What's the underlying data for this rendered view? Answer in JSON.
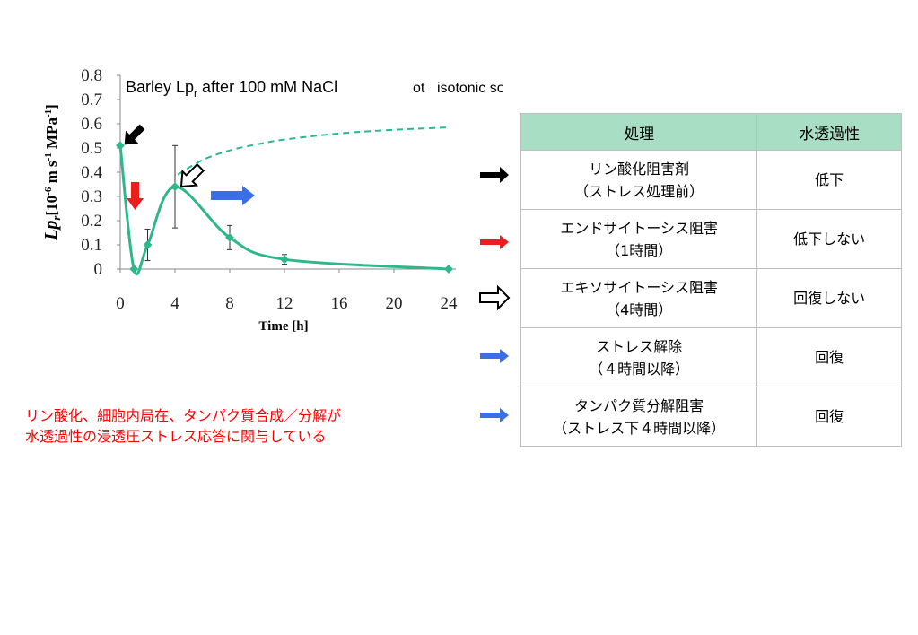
{
  "chart_data": {
    "type": "line",
    "title": "Barley Lp",
    "title_subscript": "r",
    "title_rest": " after 100 mM NaCl",
    "subtitle_prefix": "ot",
    "subtitle": "isotonic sorbitol/manitol",
    "xlabel": "Time [h]",
    "ylabel_main": "Lp",
    "ylabel_sub": "r",
    "ylabel_units": "[10",
    "ylabel_exp1": "-6",
    "ylabel_mid": " m s",
    "ylabel_exp2": "-1",
    "ylabel_mpa": " MPa",
    "ylabel_exp3": "-1",
    "ylabel_close": "]",
    "xlim": [
      0,
      24
    ],
    "ylim": [
      0,
      0.8
    ],
    "x_ticks": [
      "0",
      "4",
      "8",
      "12",
      "16",
      "20",
      "24"
    ],
    "y_ticks": [
      "0",
      "0.1",
      "0.2",
      "0.3",
      "0.4",
      "0.5",
      "0.6",
      "0.7",
      "0.8"
    ],
    "series": [
      {
        "x": [
          0,
          1,
          2,
          4,
          8,
          12,
          24
        ],
        "y": [
          0.51,
          0.0,
          0.1,
          0.34,
          0.13,
          0.04,
          0.0
        ],
        "err": [
          0.0,
          0.0,
          0.065,
          0.17,
          0.05,
          0.02,
          0.0
        ],
        "color": "#2eb88a"
      }
    ],
    "projection": {
      "x": [
        4.2,
        6,
        8,
        10,
        12,
        16,
        20,
        24
      ],
      "y": [
        0.39,
        0.45,
        0.49,
        0.515,
        0.535,
        0.56,
        0.575,
        0.585
      ],
      "style": "dashed",
      "color": "#2eb88a"
    },
    "grid": false
  },
  "table": {
    "headers": [
      "処理",
      "水透過性"
    ],
    "rows": [
      {
        "treatment": [
          "リン酸化阻害剤",
          "（ストレス処理前）"
        ],
        "effect": "低下",
        "arrow": "black-solid"
      },
      {
        "treatment": [
          "エンドサイトーシス阻害",
          "（1時間）"
        ],
        "effect": "低下しない",
        "arrow": "red"
      },
      {
        "treatment": [
          "エキソサイトーシス阻害",
          "（4時間）"
        ],
        "effect": "回復しない",
        "arrow": "black-outline"
      },
      {
        "treatment": [
          "ストレス解除",
          "（４時間以降）"
        ],
        "effect": "回復",
        "arrow": "blue"
      },
      {
        "treatment": [
          "タンパク質分解阻害",
          "（ストレス下４時間以降）"
        ],
        "effect": "回復",
        "arrow": "blue"
      }
    ],
    "header_color": "#a8dec4"
  },
  "note": {
    "lines": [
      "リン酸化、細胞内局在、タンパク質合成／分解が",
      "水透過性の浸透圧ストレス応答に関与している"
    ],
    "color": "#ff0000"
  },
  "arrow_colors": {
    "black": "#000000",
    "red": "#ee1c1c",
    "blue": "#3a6fe8"
  }
}
